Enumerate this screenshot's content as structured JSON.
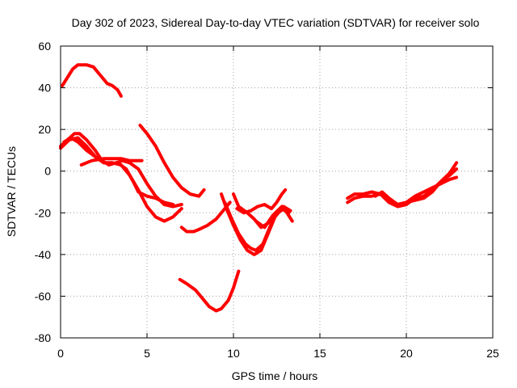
{
  "chart_data": {
    "type": "line",
    "title": "Day 302 of 2023, Sidereal Day-to-day VTEC variation (SDTVAR) for receiver solo",
    "xlabel": "GPS time / hours",
    "ylabel": "SDTVAR / TECUs",
    "xlim": [
      0,
      25
    ],
    "ylim": [
      -80,
      60
    ],
    "x_ticks": [
      0,
      5,
      10,
      15,
      20,
      25
    ],
    "y_ticks": [
      -80,
      -60,
      -40,
      -20,
      0,
      20,
      40,
      60
    ],
    "x_tick_labels": [
      "0",
      "5",
      "10",
      "15",
      "20",
      "25"
    ],
    "y_tick_labels": [
      "-80",
      "-60",
      "-40",
      "-20",
      "0",
      "20",
      "40",
      "60"
    ],
    "grid": true,
    "color": "#ff0000",
    "series": [
      {
        "name": "arc-1",
        "points": [
          [
            0.1,
            41
          ],
          [
            0.4,
            45
          ],
          [
            0.7,
            49
          ],
          [
            1.0,
            51
          ],
          [
            1.5,
            51
          ],
          [
            1.9,
            50
          ],
          [
            2.3,
            46
          ],
          [
            2.7,
            42
          ],
          [
            3.0,
            41
          ],
          [
            3.3,
            39
          ],
          [
            3.5,
            36
          ]
        ]
      },
      {
        "name": "arc-2",
        "points": [
          [
            0.0,
            12
          ],
          [
            0.4,
            15
          ],
          [
            0.8,
            18
          ],
          [
            1.1,
            18
          ],
          [
            1.5,
            15
          ],
          [
            2.0,
            10
          ],
          [
            2.4,
            5
          ],
          [
            2.8,
            3
          ],
          [
            3.2,
            4
          ],
          [
            3.6,
            5
          ],
          [
            4.0,
            4
          ],
          [
            4.5,
            1
          ],
          [
            5.0,
            -6
          ],
          [
            5.5,
            -12
          ],
          [
            6.0,
            -16
          ],
          [
            6.5,
            -17
          ],
          [
            7.0,
            -16
          ]
        ]
      },
      {
        "name": "arc-3",
        "points": [
          [
            0.0,
            11
          ],
          [
            0.5,
            15
          ],
          [
            1.0,
            16
          ],
          [
            1.5,
            12
          ],
          [
            2.0,
            7
          ],
          [
            2.5,
            4
          ],
          [
            3.0,
            4
          ],
          [
            3.5,
            3
          ],
          [
            4.0,
            -2
          ],
          [
            4.5,
            -9
          ],
          [
            5.0,
            -17
          ],
          [
            5.5,
            -22
          ],
          [
            6.0,
            -24
          ],
          [
            6.5,
            -22
          ],
          [
            7.0,
            -18
          ]
        ]
      },
      {
        "name": "arc-4",
        "points": [
          [
            0.2,
            14
          ],
          [
            0.6,
            16
          ],
          [
            1.0,
            14
          ],
          [
            1.5,
            10
          ],
          [
            2.0,
            7
          ],
          [
            2.5,
            4
          ],
          [
            3.0,
            4
          ]
        ]
      },
      {
        "name": "arc-5",
        "points": [
          [
            1.2,
            3
          ],
          [
            1.8,
            5
          ],
          [
            2.5,
            6
          ],
          [
            3.0,
            6
          ],
          [
            3.5,
            6
          ],
          [
            4.0,
            5
          ],
          [
            4.5,
            5
          ],
          [
            4.7,
            5
          ]
        ]
      },
      {
        "name": "arc-6",
        "points": [
          [
            3.3,
            4
          ],
          [
            3.8,
            1
          ],
          [
            4.2,
            -5
          ],
          [
            4.5,
            -10
          ],
          [
            5.0,
            -12
          ],
          [
            5.5,
            -13
          ],
          [
            6.0,
            -15
          ],
          [
            6.5,
            -16
          ]
        ]
      },
      {
        "name": "arc-7",
        "points": [
          [
            4.6,
            22
          ],
          [
            5.0,
            18
          ],
          [
            5.5,
            12
          ],
          [
            6.0,
            4
          ],
          [
            6.5,
            -3
          ],
          [
            7.0,
            -8
          ],
          [
            7.5,
            -11
          ],
          [
            8.0,
            -12
          ],
          [
            8.3,
            -9
          ]
        ]
      },
      {
        "name": "arc-8",
        "points": [
          [
            7.0,
            -27
          ],
          [
            7.3,
            -29
          ],
          [
            7.7,
            -29
          ],
          [
            8.0,
            -28
          ],
          [
            8.5,
            -26
          ],
          [
            9.0,
            -23
          ],
          [
            9.5,
            -18
          ],
          [
            9.8,
            -15
          ]
        ]
      },
      {
        "name": "arc-9",
        "points": [
          [
            6.9,
            -52
          ],
          [
            7.3,
            -54
          ],
          [
            7.8,
            -57
          ],
          [
            8.2,
            -61
          ],
          [
            8.6,
            -65
          ],
          [
            9.0,
            -67
          ],
          [
            9.3,
            -66
          ],
          [
            9.7,
            -62
          ],
          [
            10.0,
            -56
          ],
          [
            10.3,
            -48
          ]
        ]
      },
      {
        "name": "arc-10",
        "points": [
          [
            9.3,
            -11
          ],
          [
            9.6,
            -18
          ],
          [
            10.0,
            -26
          ],
          [
            10.4,
            -33
          ],
          [
            10.8,
            -38
          ],
          [
            11.2,
            -40
          ],
          [
            11.6,
            -38
          ],
          [
            12.0,
            -30
          ],
          [
            12.4,
            -22
          ],
          [
            12.8,
            -18
          ],
          [
            13.2,
            -20
          ]
        ]
      },
      {
        "name": "arc-11",
        "points": [
          [
            9.5,
            -15
          ],
          [
            9.9,
            -23
          ],
          [
            10.3,
            -30
          ],
          [
            10.7,
            -35
          ],
          [
            11.0,
            -37
          ],
          [
            11.3,
            -38
          ],
          [
            11.7,
            -35
          ],
          [
            12.1,
            -27
          ],
          [
            12.5,
            -20
          ],
          [
            12.9,
            -17
          ],
          [
            13.3,
            -19
          ]
        ]
      },
      {
        "name": "arc-12",
        "points": [
          [
            10.0,
            -11
          ],
          [
            10.3,
            -17
          ],
          [
            10.8,
            -20
          ],
          [
            11.2,
            -23
          ],
          [
            11.6,
            -27
          ],
          [
            12.0,
            -25
          ],
          [
            12.5,
            -20
          ],
          [
            13.0,
            -18
          ]
        ]
      },
      {
        "name": "arc-13",
        "points": [
          [
            10.2,
            -18
          ],
          [
            10.6,
            -20
          ],
          [
            11.0,
            -19
          ],
          [
            11.4,
            -17
          ],
          [
            11.8,
            -16
          ],
          [
            12.2,
            -18
          ],
          [
            12.5,
            -15
          ],
          [
            12.8,
            -11
          ],
          [
            13.0,
            -9
          ]
        ]
      },
      {
        "name": "arc-14",
        "points": [
          [
            11.3,
            -24
          ],
          [
            11.8,
            -27
          ],
          [
            12.3,
            -21
          ],
          [
            12.8,
            -17
          ],
          [
            13.1,
            -20
          ],
          [
            13.4,
            -24
          ]
        ]
      },
      {
        "name": "arc-15",
        "points": [
          [
            16.6,
            -13
          ],
          [
            17.0,
            -11
          ],
          [
            17.5,
            -11
          ],
          [
            18.0,
            -10
          ],
          [
            18.5,
            -11
          ],
          [
            19.0,
            -14
          ],
          [
            19.5,
            -16
          ],
          [
            20.0,
            -15
          ],
          [
            20.5,
            -14
          ],
          [
            21.0,
            -13
          ],
          [
            21.5,
            -10
          ],
          [
            22.0,
            -5
          ],
          [
            22.5,
            -2
          ],
          [
            22.9,
            1
          ]
        ]
      },
      {
        "name": "arc-16",
        "points": [
          [
            16.6,
            -15
          ],
          [
            17.0,
            -13
          ],
          [
            17.5,
            -12
          ],
          [
            18.0,
            -12
          ],
          [
            18.5,
            -11
          ],
          [
            19.0,
            -15
          ],
          [
            19.5,
            -17
          ],
          [
            20.0,
            -16
          ],
          [
            20.5,
            -13
          ],
          [
            21.0,
            -12
          ],
          [
            21.5,
            -9
          ],
          [
            22.0,
            -5
          ],
          [
            22.5,
            -1
          ],
          [
            22.9,
            4
          ]
        ]
      },
      {
        "name": "arc-17",
        "points": [
          [
            18.2,
            -12
          ],
          [
            18.6,
            -10
          ],
          [
            19.0,
            -13
          ],
          [
            19.5,
            -16
          ],
          [
            20.0,
            -15
          ],
          [
            20.5,
            -12
          ],
          [
            21.0,
            -10
          ],
          [
            21.5,
            -8
          ],
          [
            22.0,
            -6
          ],
          [
            22.5,
            -4
          ],
          [
            22.9,
            -3
          ]
        ]
      }
    ]
  }
}
